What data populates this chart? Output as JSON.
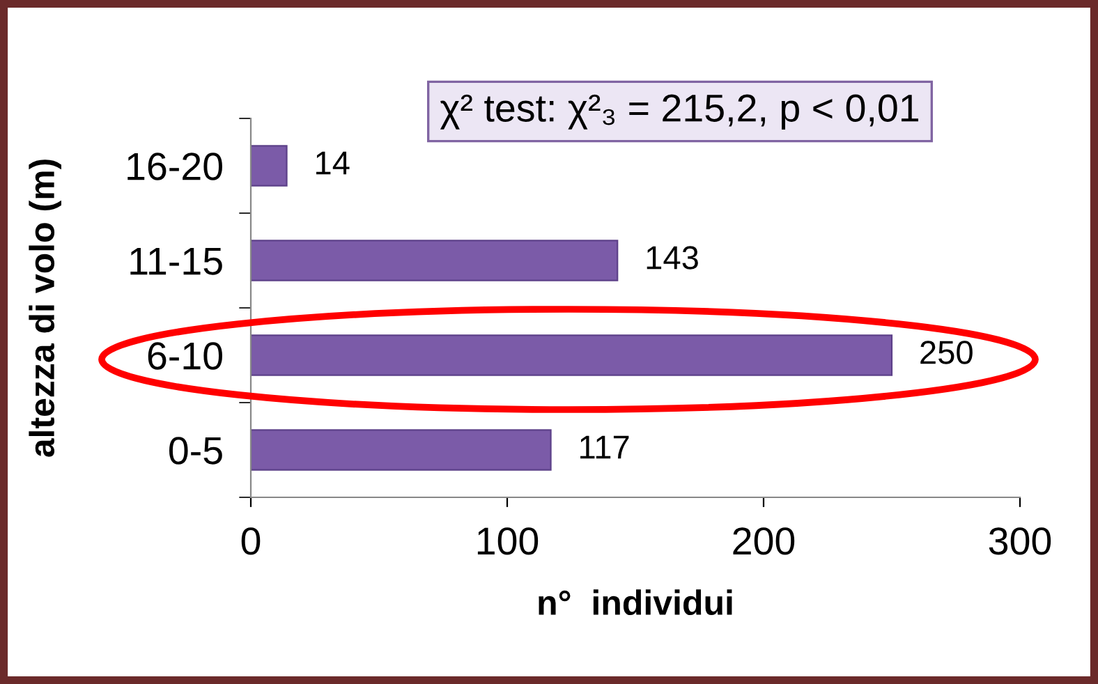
{
  "chart_data": {
    "type": "bar",
    "orientation": "horizontal",
    "categories": [
      "16-20",
      "11-15",
      "6-10",
      "0-5"
    ],
    "values": [
      14,
      143,
      250,
      117
    ],
    "color": "#7b5ba8",
    "xlim": [
      0,
      300
    ],
    "xticks": [
      0,
      100,
      200,
      300
    ],
    "xlabel": "n°  individui",
    "ylabel": "altezza di volo (m)",
    "data_labels": true,
    "grid": false,
    "annotations": [
      "χ² test: χ²₃ = 215,2, p < 0,01"
    ]
  }
}
